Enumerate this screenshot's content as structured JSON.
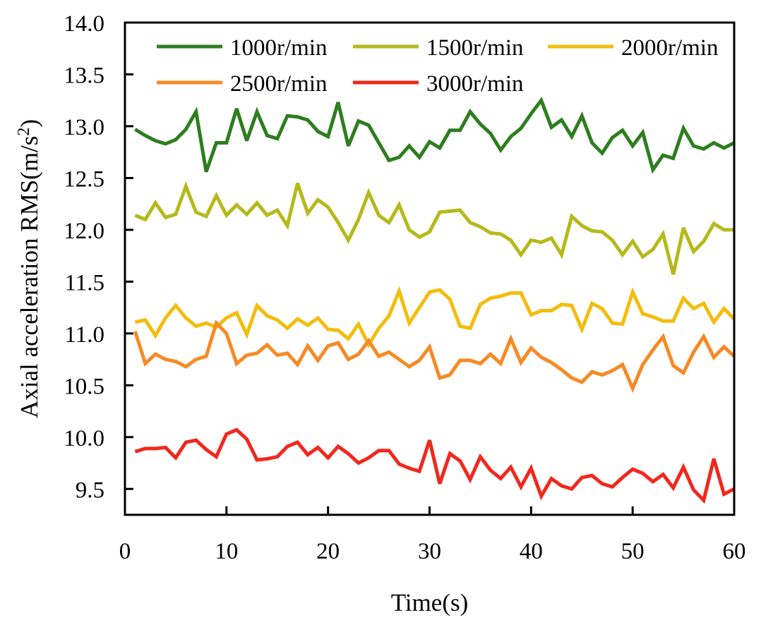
{
  "chart_data": {
    "type": "line",
    "title": "",
    "xlabel": "Time(s)",
    "ylabel_main": "Axial acceleration RMS(m/s",
    "ylabel_sup": "2",
    "ylabel_close": ")",
    "xlim": [
      0,
      60
    ],
    "ylim": [
      9.25,
      14.0
    ],
    "xticks": [
      0,
      10,
      20,
      30,
      40,
      50,
      60
    ],
    "xtick_labels": [
      "0",
      "10",
      "20",
      "30",
      "40",
      "50",
      "60"
    ],
    "yticks": [
      9.5,
      10.0,
      10.5,
      11.0,
      11.5,
      12.0,
      12.5,
      13.0,
      13.5,
      14.0
    ],
    "ytick_labels": [
      "9.5",
      "10.0",
      "10.5",
      "11.0",
      "11.5",
      "12.0",
      "12.5",
      "13.0",
      "13.5",
      "14.0"
    ],
    "grid": false,
    "legend_position": "top",
    "x": [
      1,
      2,
      3,
      4,
      5,
      6,
      7,
      8,
      9,
      10,
      11,
      12,
      13,
      14,
      15,
      16,
      17,
      18,
      19,
      20,
      21,
      22,
      23,
      24,
      25,
      26,
      27,
      28,
      29,
      30,
      31,
      32,
      33,
      34,
      35,
      36,
      37,
      38,
      39,
      40,
      41,
      42,
      43,
      44,
      45,
      46,
      47,
      48,
      49,
      50,
      51,
      52,
      53,
      54,
      55,
      56,
      57,
      58,
      59,
      60
    ],
    "series": [
      {
        "name": "1000r/min",
        "color": "#2e7d1f",
        "values": [
          12.97,
          12.91,
          12.86,
          12.83,
          12.87,
          12.97,
          13.14,
          12.56,
          12.84,
          12.84,
          13.17,
          12.86,
          13.14,
          12.91,
          12.88,
          13.1,
          13.09,
          13.06,
          12.95,
          12.9,
          13.23,
          12.81,
          13.05,
          13.01,
          12.84,
          12.67,
          12.7,
          12.81,
          12.7,
          12.85,
          12.79,
          12.96,
          12.96,
          13.14,
          13.02,
          12.93,
          12.77,
          12.9,
          12.98,
          13.12,
          13.25,
          12.99,
          13.06,
          12.9,
          13.1,
          12.84,
          12.74,
          12.89,
          12.96,
          12.81,
          12.94,
          12.58,
          12.72,
          12.69,
          12.98,
          12.81,
          12.78,
          12.84,
          12.79,
          12.84
        ]
      },
      {
        "name": "1500r/min",
        "color": "#b5b91b",
        "values": [
          12.14,
          12.1,
          12.26,
          12.12,
          12.15,
          12.42,
          12.17,
          12.13,
          12.33,
          12.14,
          12.24,
          12.15,
          12.26,
          12.14,
          12.19,
          12.04,
          12.45,
          12.16,
          12.29,
          12.22,
          12.07,
          11.9,
          12.1,
          12.36,
          12.14,
          12.07,
          12.24,
          12.0,
          11.93,
          11.98,
          12.17,
          12.18,
          12.19,
          12.07,
          12.03,
          11.97,
          11.96,
          11.9,
          11.76,
          11.9,
          11.88,
          11.92,
          11.76,
          12.13,
          12.04,
          11.99,
          11.98,
          11.9,
          11.76,
          11.89,
          11.74,
          11.81,
          11.96,
          11.57,
          12.02,
          11.79,
          11.89,
          12.06,
          12.0,
          12.0
        ]
      },
      {
        "name": "2000r/min",
        "color": "#f2bd0c",
        "values": [
          11.11,
          11.13,
          10.98,
          11.15,
          11.27,
          11.15,
          11.07,
          11.1,
          11.06,
          11.15,
          11.2,
          10.99,
          11.27,
          11.17,
          11.13,
          11.05,
          11.14,
          11.08,
          11.15,
          11.04,
          11.03,
          10.95,
          11.09,
          10.89,
          11.05,
          11.17,
          11.41,
          11.1,
          11.25,
          11.4,
          11.42,
          11.33,
          11.07,
          11.05,
          11.28,
          11.34,
          11.36,
          11.39,
          11.39,
          11.18,
          11.22,
          11.22,
          11.28,
          11.27,
          11.04,
          11.29,
          11.24,
          11.1,
          11.09,
          11.4,
          11.19,
          11.16,
          11.12,
          11.12,
          11.34,
          11.24,
          11.29,
          11.11,
          11.24,
          11.14
        ]
      },
      {
        "name": "2500r/min",
        "color": "#f58a25",
        "values": [
          11.02,
          10.71,
          10.8,
          10.75,
          10.73,
          10.68,
          10.75,
          10.78,
          11.1,
          11.0,
          10.71,
          10.79,
          10.81,
          10.89,
          10.79,
          10.81,
          10.7,
          10.88,
          10.74,
          10.88,
          10.91,
          10.75,
          10.8,
          10.93,
          10.78,
          10.82,
          10.75,
          10.68,
          10.74,
          10.87,
          10.57,
          10.6,
          10.74,
          10.74,
          10.71,
          10.8,
          10.71,
          10.95,
          10.72,
          10.86,
          10.77,
          10.72,
          10.65,
          10.57,
          10.53,
          10.63,
          10.6,
          10.64,
          10.7,
          10.47,
          10.7,
          10.84,
          10.97,
          10.69,
          10.62,
          10.82,
          10.97,
          10.77,
          10.87,
          10.78
        ]
      },
      {
        "name": "3000r/min",
        "color": "#f0281e",
        "values": [
          9.86,
          9.89,
          9.89,
          9.9,
          9.8,
          9.95,
          9.97,
          9.88,
          9.81,
          10.03,
          10.07,
          9.98,
          9.78,
          9.79,
          9.81,
          9.91,
          9.95,
          9.83,
          9.9,
          9.8,
          9.91,
          9.84,
          9.75,
          9.8,
          9.87,
          9.87,
          9.74,
          9.7,
          9.67,
          9.97,
          9.55,
          9.84,
          9.77,
          9.59,
          9.81,
          9.68,
          9.6,
          9.71,
          9.52,
          9.7,
          9.43,
          9.6,
          9.53,
          9.5,
          9.61,
          9.63,
          9.55,
          9.52,
          9.61,
          9.69,
          9.65,
          9.57,
          9.64,
          9.51,
          9.71,
          9.49,
          9.39,
          9.79,
          9.45,
          9.5
        ]
      }
    ]
  }
}
